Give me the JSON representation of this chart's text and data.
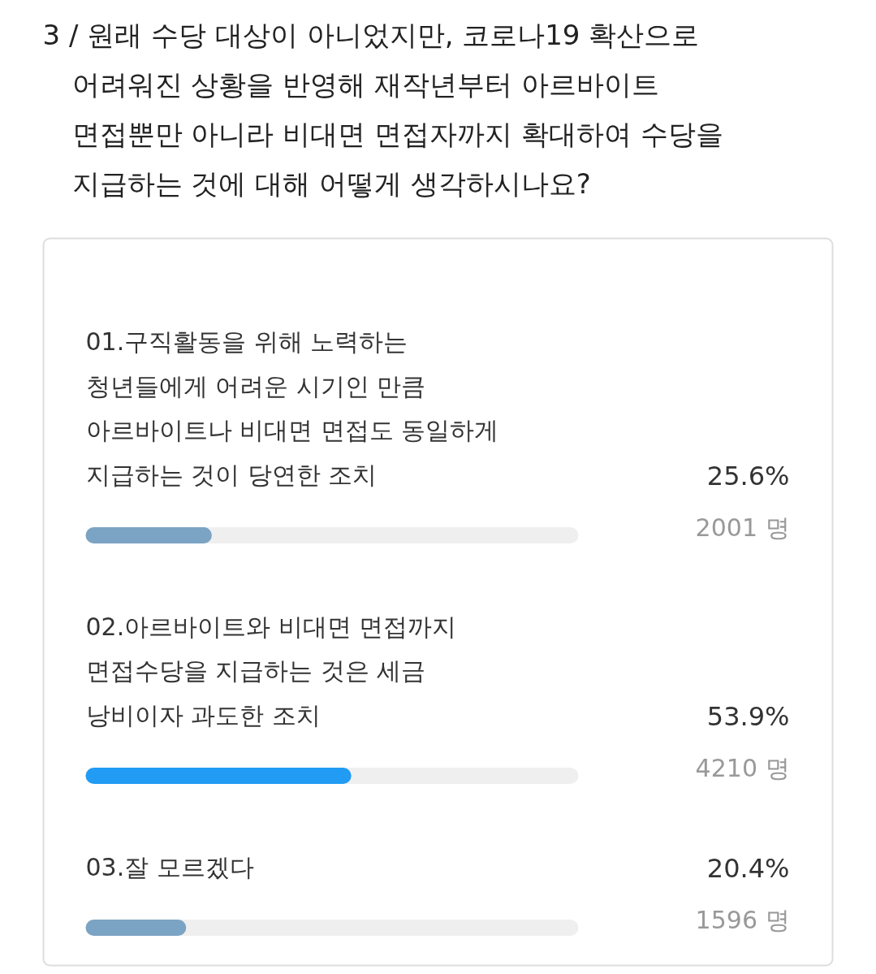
{
  "chart_data": {
    "type": "bar",
    "orientation": "horizontal",
    "title": "3 / 원래 수당 대상이 아니었지만, 코로나19 확산으로\n어려워진 상황을 반영해 재작년부터 아르바이트\n면접뿐만 아니라 비대면 면접자까지 확대하여 수당을\n지급하는 것에 대해 어떻게 생각하시나요?",
    "categories": [
      "01.구직활동을 위해 노력하는\n청년들에게 어려운 시기인 만큼\n아르바이트나 비대면 면접도 동일하게\n지급하는 것이 당연한 조치",
      "02.아르바이트와 비대면 면접까지\n면접수당을 지급하는 것은 세금\n낭비이자 과도한 조치",
      "03.잘 모르겠다"
    ],
    "values": [
      25.6,
      53.9,
      20.4
    ],
    "colors": [
      "#7ba3c4",
      "#219bf3",
      "#7ba3c4"
    ],
    "value_labels": [
      "25.6%",
      "53.9%",
      "20.4%"
    ],
    "annotations": [
      "2001 명",
      "4210 명",
      "1596 명"
    ],
    "xlim": [
      0,
      100
    ]
  }
}
